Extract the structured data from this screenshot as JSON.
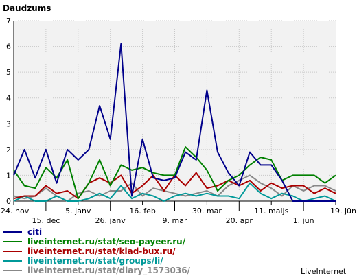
{
  "chart_data": {
    "type": "line",
    "title": "Daudzums",
    "brand": "LiveInternet",
    "ylim": [
      0,
      7
    ],
    "yticks": [
      0,
      1,
      2,
      3,
      4,
      5,
      6,
      7
    ],
    "grid": true,
    "legend_position": "bottom-left",
    "xlabels": [
      {
        "label": "24. nov",
        "i": 0,
        "row": 1
      },
      {
        "label": "15. dec",
        "i": 3,
        "row": 2
      },
      {
        "label": "5. janv",
        "i": 6,
        "row": 1
      },
      {
        "label": "26. janv",
        "i": 9,
        "row": 2
      },
      {
        "label": "16. feb",
        "i": 12,
        "row": 1
      },
      {
        "label": "9. mar",
        "i": 15,
        "row": 2
      },
      {
        "label": "30. mar",
        "i": 18,
        "row": 1
      },
      {
        "label": "20. apr",
        "i": 21,
        "row": 2
      },
      {
        "label": "11. maijs",
        "i": 24,
        "row": 1
      },
      {
        "label": "1. jūn",
        "i": 27,
        "row": 2
      },
      {
        "label": "19. jūn",
        "i": 30,
        "row": 1
      }
    ],
    "series": [
      {
        "name": "citi",
        "color": "#00008b",
        "values": [
          1.0,
          2.0,
          0.9,
          2.0,
          0.7,
          2.0,
          1.6,
          2.0,
          3.7,
          2.4,
          6.1,
          0.2,
          2.4,
          0.9,
          0.8,
          0.9,
          1.9,
          1.6,
          4.3,
          1.9,
          1.1,
          0.6,
          1.9,
          1.4,
          1.4,
          0.8,
          0.0,
          0.0,
          0.0,
          0.0,
          0.0
        ]
      },
      {
        "name": "liveinternet.ru/stat/seo-payeer.ru/",
        "color": "#008000",
        "values": [
          1.2,
          0.6,
          0.5,
          1.3,
          0.9,
          1.6,
          0.1,
          0.7,
          1.6,
          0.6,
          1.4,
          1.2,
          1.3,
          1.1,
          1.0,
          1.0,
          2.1,
          1.7,
          1.2,
          0.4,
          0.8,
          1.0,
          1.4,
          1.7,
          1.6,
          0.8,
          1.0,
          1.0,
          1.0,
          0.7,
          1.0
        ]
      },
      {
        "name": "liveinternet.ru/stat/klad-bux.ru/",
        "color": "#aa0000",
        "values": [
          0.1,
          0.2,
          0.2,
          0.6,
          0.3,
          0.4,
          0.1,
          0.7,
          0.9,
          0.7,
          1.0,
          0.3,
          0.6,
          1.0,
          0.4,
          1.0,
          0.6,
          1.1,
          0.5,
          0.6,
          0.8,
          0.6,
          0.8,
          0.4,
          0.7,
          0.5,
          0.6,
          0.6,
          0.3,
          0.5,
          0.3
        ]
      },
      {
        "name": "liveinternet.ru/stat/groups/li/",
        "color": "#009999",
        "values": [
          0.0,
          0.2,
          0.0,
          0.0,
          0.2,
          0.0,
          0.0,
          0.1,
          0.3,
          0.1,
          0.6,
          0.1,
          0.3,
          0.2,
          0.0,
          0.2,
          0.3,
          0.2,
          0.3,
          0.2,
          0.2,
          0.1,
          0.7,
          0.3,
          0.1,
          0.3,
          0.2,
          0.0,
          0.1,
          0.2,
          0.0
        ]
      },
      {
        "name": "liveinternet.ru/stat/diary_1573036/",
        "color": "#888888",
        "values": [
          0.2,
          0.1,
          0.2,
          0.5,
          0.2,
          0.0,
          0.3,
          0.4,
          0.2,
          0.4,
          0.4,
          0.7,
          0.2,
          0.5,
          0.4,
          0.3,
          0.2,
          0.3,
          0.4,
          0.2,
          0.6,
          0.8,
          1.0,
          0.7,
          0.5,
          0.2,
          0.6,
          0.4,
          0.6,
          0.6,
          0.4
        ]
      }
    ]
  }
}
